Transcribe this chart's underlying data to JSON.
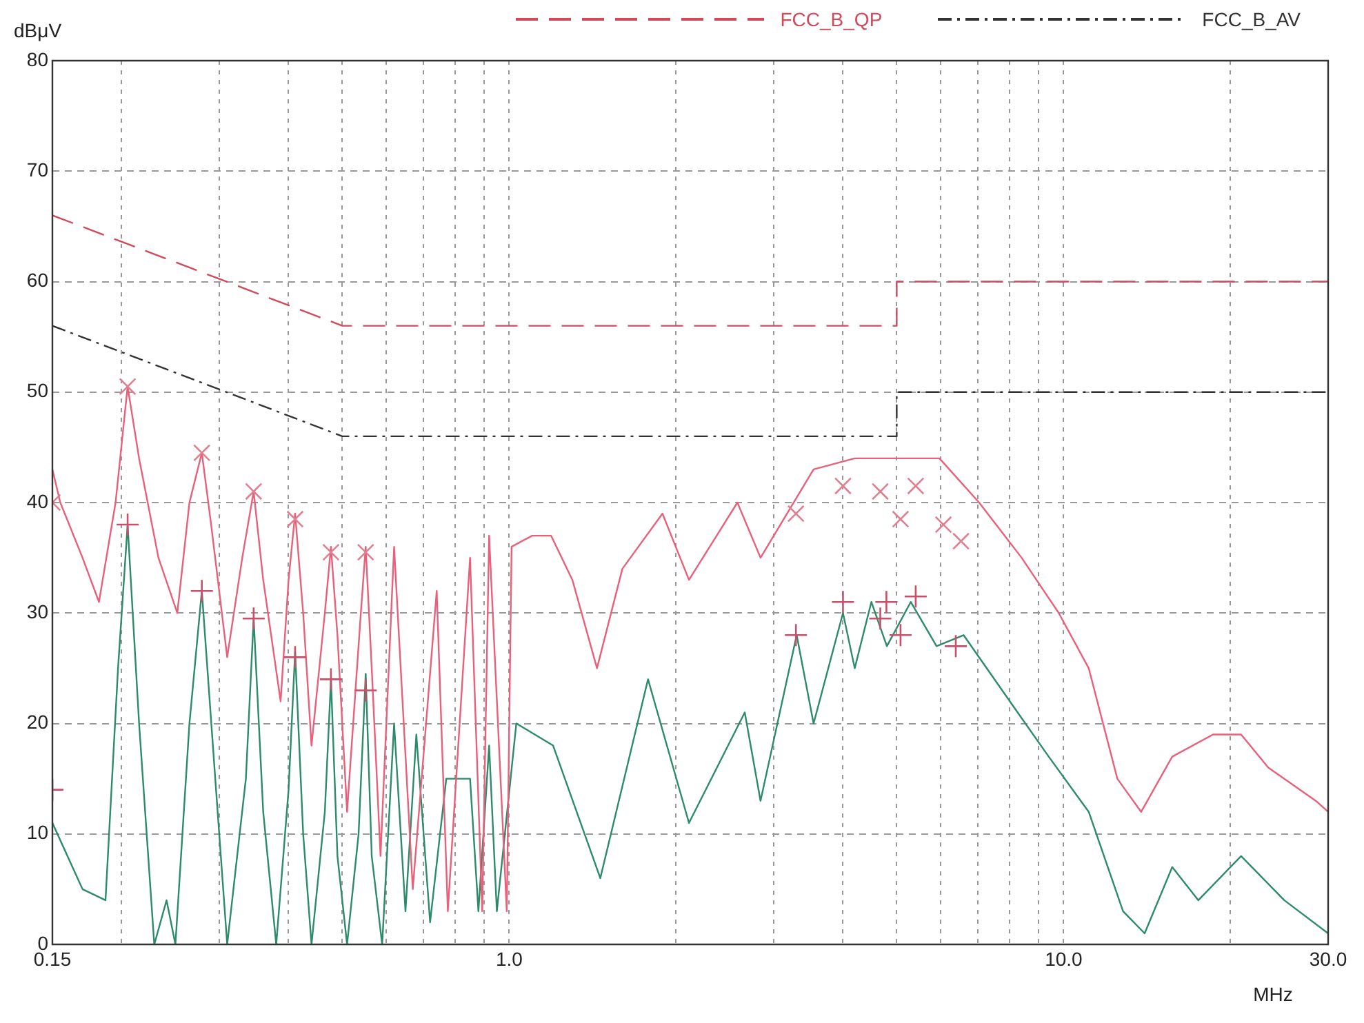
{
  "chart_data": {
    "type": "line",
    "xlabel": "MHz",
    "ylabel": "dBμV",
    "log": "x",
    "grid": true,
    "legend": "top",
    "xlim": [
      0.15,
      30
    ],
    "ylim": [
      0,
      80
    ],
    "xticks": [
      {
        "value": 0.15,
        "label": "0.15"
      },
      {
        "value": 0.2,
        "label": null
      },
      {
        "value": 0.3,
        "label": null
      },
      {
        "value": 0.4,
        "label": null
      },
      {
        "value": 0.5,
        "label": null
      },
      {
        "value": 0.6,
        "label": null
      },
      {
        "value": 0.7,
        "label": null
      },
      {
        "value": 0.8,
        "label": null
      },
      {
        "value": 0.9,
        "label": null
      },
      {
        "value": 1,
        "label": "1.0"
      },
      {
        "value": 2,
        "label": null
      },
      {
        "value": 3,
        "label": null
      },
      {
        "value": 4,
        "label": null
      },
      {
        "value": 5,
        "label": null
      },
      {
        "value": 6,
        "label": null
      },
      {
        "value": 7,
        "label": null
      },
      {
        "value": 8,
        "label": null
      },
      {
        "value": 9,
        "label": null
      },
      {
        "value": 10,
        "label": "10.0"
      },
      {
        "value": 20,
        "label": null
      },
      {
        "value": 30,
        "label": "30.0"
      }
    ],
    "yticks": [
      0,
      10,
      20,
      30,
      40,
      50,
      60,
      70,
      80
    ],
    "series": [
      {
        "name": "FCC_B_QP",
        "line_style": "dashed",
        "color": "#d04a5a",
        "x": [
          0.15,
          0.5,
          5,
          5,
          30
        ],
        "values": [
          66,
          56,
          56,
          60,
          60
        ]
      },
      {
        "name": "FCC_B_AV",
        "line_style": "dashdot",
        "color": "#333333",
        "x": [
          0.15,
          0.5,
          5,
          5,
          30
        ],
        "values": [
          56,
          46,
          46,
          50,
          50
        ]
      },
      {
        "line_style": "solid",
        "color": "#e8607a",
        "x": [
          0.15,
          0.155,
          0.17,
          0.182,
          0.195,
          0.205,
          0.215,
          0.233,
          0.252,
          0.265,
          0.279,
          0.29,
          0.31,
          0.33,
          0.346,
          0.36,
          0.387,
          0.4,
          0.411,
          0.425,
          0.44,
          0.465,
          0.477,
          0.49,
          0.51,
          0.54,
          0.551,
          0.565,
          0.586,
          0.62,
          0.67,
          0.74,
          0.775,
          0.85,
          0.894,
          0.92,
          0.99,
          1.01,
          1.1,
          1.19,
          1.3,
          1.44,
          1.6,
          1.89,
          2.11,
          2.58,
          2.84,
          3.54,
          4.2,
          5,
          5.97,
          7.04,
          8.4,
          9.8,
          11.1,
          12.5,
          13.8,
          15.7,
          18.6,
          20.9,
          23.4,
          28.5,
          30
        ],
        "values": [
          43,
          40,
          35,
          31,
          40,
          50.5,
          44,
          35,
          30,
          40,
          44.5,
          38,
          26,
          35,
          41,
          33,
          22,
          33,
          39,
          30,
          18,
          30,
          36,
          28,
          12,
          30,
          36,
          25,
          8,
          36,
          5,
          32,
          3,
          35,
          3,
          37,
          3,
          36,
          37,
          37,
          33,
          25,
          34,
          39,
          33,
          40,
          35,
          43,
          44,
          44,
          44,
          40,
          35,
          30,
          25,
          15,
          12,
          17,
          19,
          19,
          16,
          13,
          12
        ]
      },
      {
        "line_style": "solid",
        "color": "#2e8b6a",
        "x": [
          0.15,
          0.17,
          0.187,
          0.197,
          0.205,
          0.215,
          0.229,
          0.241,
          0.25,
          0.265,
          0.279,
          0.295,
          0.31,
          0.335,
          0.346,
          0.36,
          0.38,
          0.4,
          0.411,
          0.425,
          0.44,
          0.465,
          0.477,
          0.49,
          0.51,
          0.535,
          0.551,
          0.565,
          0.59,
          0.62,
          0.65,
          0.68,
          0.72,
          0.77,
          0.85,
          0.88,
          0.92,
          0.95,
          1.03,
          1.2,
          1.46,
          1.78,
          2.11,
          2.66,
          2.84,
          3.3,
          3.54,
          4,
          4.2,
          4.5,
          4.8,
          5.3,
          5.9,
          6.6,
          8,
          9.4,
          11.1,
          12.8,
          14,
          15.7,
          17.5,
          20.9,
          25,
          30
        ],
        "values": [
          11,
          5,
          4,
          25,
          38,
          20,
          0,
          4,
          0,
          20,
          32,
          15,
          0,
          15,
          29.5,
          12,
          0,
          14,
          26.5,
          10,
          0,
          12,
          24,
          8,
          0,
          10,
          24.5,
          8,
          0,
          20,
          3,
          19,
          2,
          15,
          15,
          3,
          18,
          3,
          20,
          18,
          6,
          24,
          11,
          21,
          13,
          28,
          20,
          30,
          25,
          31,
          27,
          31,
          27,
          28,
          22,
          17,
          12,
          3,
          1,
          7,
          4,
          8,
          4,
          1
        ]
      },
      {
        "type": "scatter",
        "marker": "x",
        "color": "#e07f90",
        "x": [
          0.15,
          0.205,
          0.279,
          0.346,
          0.411,
          0.477,
          0.551,
          3.29,
          4,
          4.67,
          5.08,
          5.41,
          6.07,
          6.53
        ],
        "values": [
          40,
          50.5,
          44.5,
          41,
          38.5,
          35.5,
          35.5,
          39,
          41.5,
          41,
          38.5,
          41.5,
          38,
          36.5
        ]
      },
      {
        "type": "scatter",
        "marker": "cross",
        "color": "#c8506a",
        "x": [
          0.15,
          0.205,
          0.279,
          0.346,
          0.411,
          0.477,
          0.551,
          3.29,
          4,
          4.67,
          4.79,
          5.08,
          5.41,
          6.39
        ],
        "values": [
          14,
          38,
          32,
          29.5,
          26,
          24,
          23,
          28,
          31,
          29.5,
          31,
          28,
          31.5,
          27
        ]
      }
    ]
  }
}
